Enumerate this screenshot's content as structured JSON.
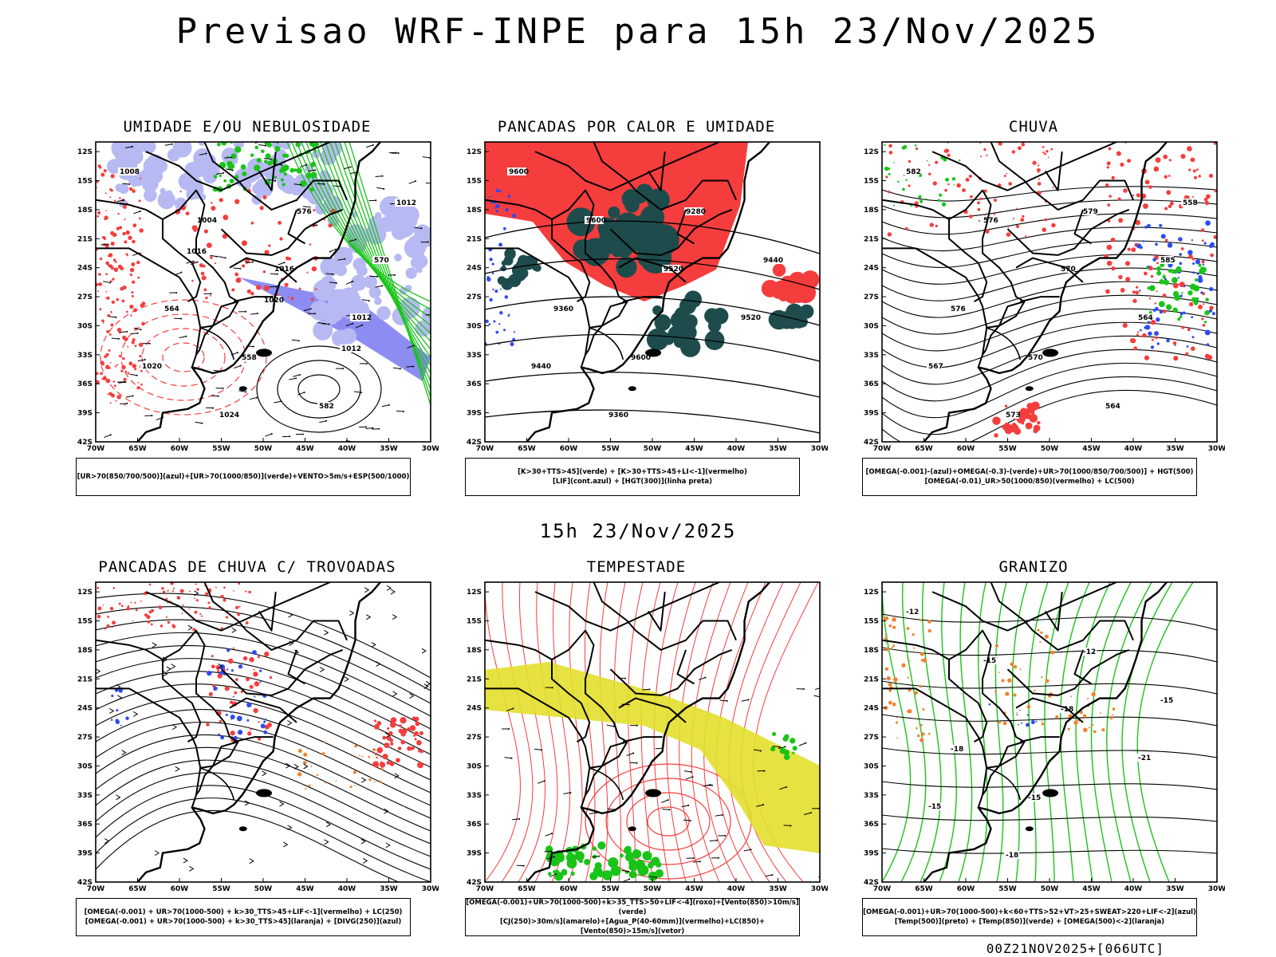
{
  "header": {
    "title": "Previsao WRF-INPE  para 15h 23/Nov/2025",
    "mid_title": "15h 23/Nov/2025",
    "run_stamp": "00Z21NOV2025+[066UTC]"
  },
  "axes": {
    "lat_labels": [
      "12S",
      "15S",
      "18S",
      "21S",
      "24S",
      "27S",
      "30S",
      "33S",
      "36S",
      "39S",
      "42S"
    ],
    "lon_labels": [
      "70W",
      "65W",
      "60W",
      "55W",
      "50W",
      "45W",
      "40W",
      "35W",
      "30W"
    ]
  },
  "colors": {
    "umid_alta": "#b7b9f2",
    "umid_forte": "#6f6ff0",
    "verde": "#19c419",
    "vermelho": "#f53d3d",
    "azul": "#2e4af0",
    "amarelo": "#e2df2c",
    "laranja": "#f0822b",
    "ciano_escuro": "#1e4c4c",
    "preto": "#000000"
  },
  "panels": [
    {
      "title": "UMIDADE E/OU NEBULOSIDADE",
      "legend": [
        "[UR>70(850/700/500)](azul)+[UR>70(1000/850)](verde)+VENTO>5m/s+ESP(500/1000)"
      ],
      "contour_labels": [
        "1008",
        "1004",
        "1016",
        "1012",
        "1020",
        "1024",
        "576",
        "570",
        "564",
        "558",
        "582",
        "1012",
        "1016",
        "1020",
        "1012"
      ]
    },
    {
      "title": "PANCADAS POR CALOR E UMIDADE",
      "legend": [
        "[K>30+TTS>45](verde) + [K>30+TTS>45+LI<-1](vermelho)",
        "[LIF](cont.azul) + [HGT(300)](linha preta)"
      ],
      "contour_labels": [
        "9600",
        "9600",
        "9520",
        "9520",
        "9440",
        "9360",
        "9280",
        "9440",
        "9360",
        "9600"
      ]
    },
    {
      "title": "CHUVA",
      "legend": [
        "[OMEGA(-0.001)-(azul)+OMEGA(-0.3)-(verde)+UR>70(1000/850/700/500)] + HGT(500)",
        "[OMEGA(-0.01)_UR>50(1000/850)(vermelho) + LC(500)"
      ],
      "contour_labels": [
        "582",
        "576",
        "570",
        "564",
        "567",
        "573",
        "579",
        "585",
        "576",
        "570",
        "564",
        "558"
      ]
    },
    {
      "title": "PANCADAS DE CHUVA C/ TROVOADAS",
      "legend": [
        "[OMEGA(-0.001) + UR>70(1000-500) + k>30_TTS>45+LIF<-1](vermelho) + LC(250)",
        "[OMEGA(-0.001) + UR>70(1000-500) + k>30_TTS>45](laranja) + [DIVG(250)](azul)"
      ],
      "contour_labels": []
    },
    {
      "title": "TEMPESTADE",
      "legend": [
        "[OMEGA(-0.001)+UR>70(1000-500)+k>35_TTS>50+LIF<-4](roxo)+[Vento(850)>10m/s](verde)",
        "[CJ(250)>30m/s](amarelo)+[Agua_P(40-60mm)](vermelho)+LC(850)+[Vento(850)>15m/s](vetor)"
      ],
      "contour_labels": []
    },
    {
      "title": "GRANIZO",
      "legend": [
        "[OMEGA(-0.001)+UR>70(1000-500)+k<60+TTS>52+VT>25+SWEAT>220+LIF<-2](azul)",
        "[Temp(500)](preto) + [Temp(850)](verde) + [OMEGA(500)<-2](laranja)"
      ],
      "contour_labels": [
        "-12",
        "-15",
        "-18",
        "-21",
        "-15",
        "-18",
        "-12",
        "-15",
        "-18",
        "-15"
      ]
    }
  ]
}
